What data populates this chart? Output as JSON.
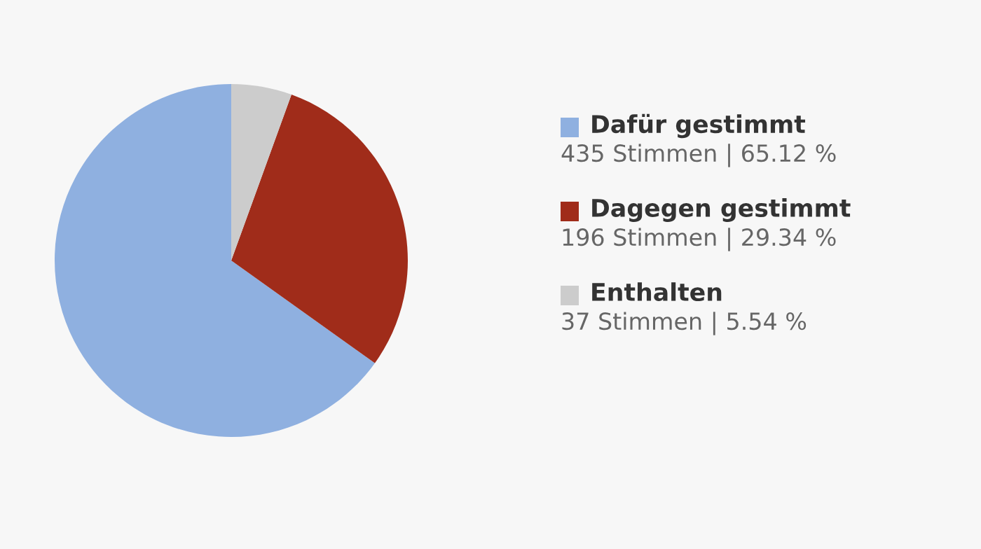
{
  "chart_data": {
    "type": "pie",
    "categories": [
      "Dafür gestimmt",
      "Dagegen gestimmt",
      "Enthalten"
    ],
    "values": [
      65.12,
      29.34,
      5.54
    ],
    "colors": [
      "#8fb0e0",
      "#a02c1a",
      "#cccccc"
    ],
    "value_labels": [
      "435 Stimmen | 65.12 %",
      "196 Stimmen | 29.34 %",
      "37 Stimmen | 5.54 %"
    ],
    "legend": "right"
  }
}
